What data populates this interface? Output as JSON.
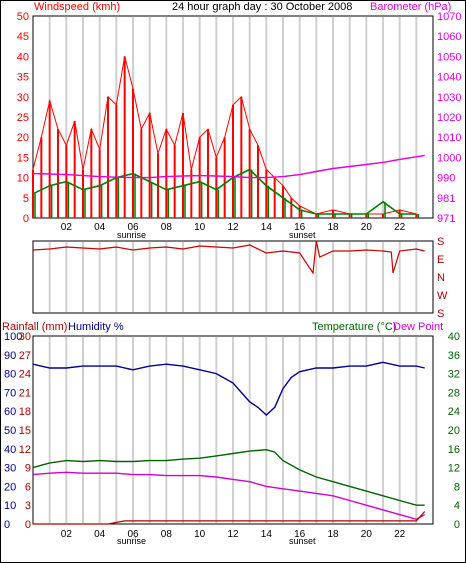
{
  "chart_data": [
    {
      "type": "line",
      "title": "24 hour graph day : 30 October 2008",
      "ylabel_left": "Windspeed (kmh)",
      "ylabel_right": "Barometer (hPa)",
      "yticks_left": [
        "50",
        "45",
        "40",
        "35",
        "30",
        "25",
        "20",
        "15",
        "10",
        "5",
        "0"
      ],
      "yticks_right": [
        "1070",
        "1060",
        "1050",
        "1040",
        "1030",
        "1020",
        "1010",
        "1000",
        "990",
        "981",
        "971"
      ],
      "ylim_left": [
        0,
        50
      ],
      "xticks": [
        "02",
        "04",
        "06",
        "08",
        "10",
        "12",
        "14",
        "16",
        "18",
        "20",
        "22"
      ],
      "sunrise_label": "sunrise",
      "sunset_label": "sunset",
      "grid": true,
      "colors": {
        "wind_gust": "#ff0000",
        "wind_avg": "#008000",
        "wind_dir": "#0000c0",
        "barometer": "#e000e0"
      },
      "series": [
        {
          "name": "Barometer (hPa)",
          "x": [
            0,
            1,
            2,
            3,
            4,
            5,
            6,
            7,
            8,
            9,
            10,
            11,
            12,
            13,
            14,
            15,
            16,
            17,
            18,
            19,
            20,
            21,
            22,
            23.5
          ],
          "values": [
            992,
            991.8,
            991.5,
            991,
            990.5,
            990.2,
            990,
            990,
            990.5,
            990.8,
            991,
            990.8,
            990.5,
            990,
            990,
            990.5,
            991.5,
            993,
            994.5,
            995.5,
            996.5,
            997.5,
            999,
            1001
          ]
        },
        {
          "name": "Windspeed gust (kmh)",
          "x": [
            0,
            0.5,
            1,
            1.5,
            2,
            2.5,
            3,
            3.5,
            4,
            4.5,
            5,
            5.5,
            6,
            6.5,
            7,
            7.5,
            8,
            8.5,
            9,
            9.5,
            10,
            10.5,
            11,
            11.5,
            12,
            12.5,
            13,
            13.5,
            14,
            14.5,
            15,
            15.5,
            16,
            17,
            18,
            19,
            20,
            21,
            22,
            23
          ],
          "values": [
            12,
            20,
            29,
            22,
            18,
            24,
            12,
            22,
            17,
            30,
            28,
            40,
            32,
            22,
            26,
            16,
            22,
            18,
            26,
            12,
            20,
            22,
            15,
            20,
            28,
            30,
            22,
            18,
            12,
            10,
            8,
            5,
            3,
            1,
            2,
            1,
            1,
            1,
            2,
            1
          ]
        },
        {
          "name": "Windspeed average (kmh)",
          "x": [
            0,
            1,
            2,
            3,
            4,
            5,
            6,
            7,
            8,
            9,
            10,
            11,
            12,
            13,
            14,
            15,
            16,
            17,
            18,
            19,
            20,
            21,
            22,
            23
          ],
          "values": [
            6,
            8,
            9,
            7,
            8,
            10,
            11,
            9,
            7,
            8,
            9,
            7,
            10,
            12,
            8,
            5,
            2,
            1,
            1,
            1,
            1,
            4,
            1,
            1
          ]
        }
      ]
    },
    {
      "type": "line",
      "ylabel_right_ticks": [
        "S",
        "E",
        "N",
        "W",
        "S"
      ],
      "series": [
        {
          "name": "Wind direction",
          "x": [
            0,
            1,
            2,
            3,
            4,
            5,
            6,
            7,
            8,
            9,
            10,
            11,
            12,
            13,
            14,
            15,
            16,
            16.8,
            17,
            17.2,
            18,
            19,
            20,
            21,
            21.5,
            21.6,
            22,
            23,
            23.5
          ],
          "values": [
            135,
            140,
            150,
            145,
            140,
            150,
            135,
            145,
            150,
            140,
            155,
            150,
            145,
            160,
            120,
            130,
            120,
            20,
            180,
            100,
            130,
            130,
            135,
            130,
            125,
            20,
            130,
            140,
            130
          ]
        }
      ]
    },
    {
      "type": "line",
      "ylabel_left_1": "Rainfall (mm)",
      "ylabel_left_2": "Humidity %",
      "ylabel_right_1": "Temperature (°C)",
      "ylabel_right_2": "Dew Point",
      "yticks_humidity": [
        "100",
        "90",
        "80",
        "70",
        "60",
        "50",
        "40",
        "30",
        "20",
        "10",
        "0"
      ],
      "yticks_rain": [
        "30",
        "27",
        "24",
        "21",
        "18",
        "15",
        "12",
        "9",
        "6",
        "3",
        "0"
      ],
      "yticks_temp": [
        "40",
        "36",
        "32",
        "28",
        "24",
        "20",
        "16",
        "12",
        "8",
        "4",
        "0"
      ],
      "yticks_dew": [
        "40",
        "36",
        "32",
        "28",
        "24",
        "20",
        "16",
        "12",
        "8",
        "4",
        "0"
      ],
      "xticks": [
        "02",
        "04",
        "06",
        "08",
        "10",
        "12",
        "14",
        "16",
        "18",
        "20",
        "22"
      ],
      "sunrise_label": "sunrise",
      "sunset_label": "sunset",
      "colors": {
        "humidity": "#000090",
        "temperature": "#006400",
        "dewpoint": "#d000d0",
        "rainfall": "#b00000"
      },
      "series": [
        {
          "name": "Humidity %",
          "x": [
            0,
            1,
            2,
            3,
            4,
            5,
            6,
            7,
            8,
            9,
            10,
            11,
            12,
            12.5,
            13,
            13.5,
            14,
            14.5,
            15,
            15.5,
            16,
            17,
            18,
            19,
            20,
            21,
            22,
            23,
            23.5
          ],
          "values": [
            85,
            83,
            83,
            84,
            84,
            84,
            82,
            84,
            85,
            84,
            82,
            80,
            75,
            70,
            65,
            62,
            58,
            62,
            72,
            78,
            81,
            83,
            83,
            84,
            84,
            86,
            84,
            84,
            83
          ]
        },
        {
          "name": "Temperature (°C)",
          "x": [
            0,
            1,
            2,
            3,
            4,
            5,
            6,
            7,
            8,
            9,
            10,
            11,
            12,
            13,
            14,
            14.5,
            15,
            16,
            17,
            18,
            19,
            20,
            21,
            22,
            23,
            23.5
          ],
          "values": [
            12,
            13,
            13.5,
            13.3,
            13.5,
            13.3,
            13.3,
            13.5,
            13.5,
            13.8,
            14,
            14.5,
            15,
            15.5,
            15.8,
            15.3,
            13.5,
            11.5,
            10,
            9,
            8,
            7,
            6,
            5,
            4,
            4
          ]
        },
        {
          "name": "Dew Point",
          "x": [
            0,
            1,
            2,
            3,
            4,
            5,
            6,
            7,
            8,
            9,
            10,
            11,
            12,
            13,
            14,
            15,
            16,
            17,
            18,
            19,
            20,
            21,
            22,
            23,
            23.5
          ],
          "values": [
            10.5,
            10.8,
            11,
            10.8,
            10.8,
            10.8,
            10.5,
            10.5,
            10.3,
            10.3,
            10.3,
            10,
            9.5,
            9,
            8,
            7.5,
            7,
            6.5,
            6,
            5,
            4,
            3,
            2,
            1,
            2
          ]
        },
        {
          "name": "Rainfall (mm)",
          "x": [
            0,
            4.5,
            5.5,
            23,
            23.5
          ],
          "values": [
            0,
            0,
            0.5,
            0.5,
            2
          ]
        }
      ]
    }
  ]
}
